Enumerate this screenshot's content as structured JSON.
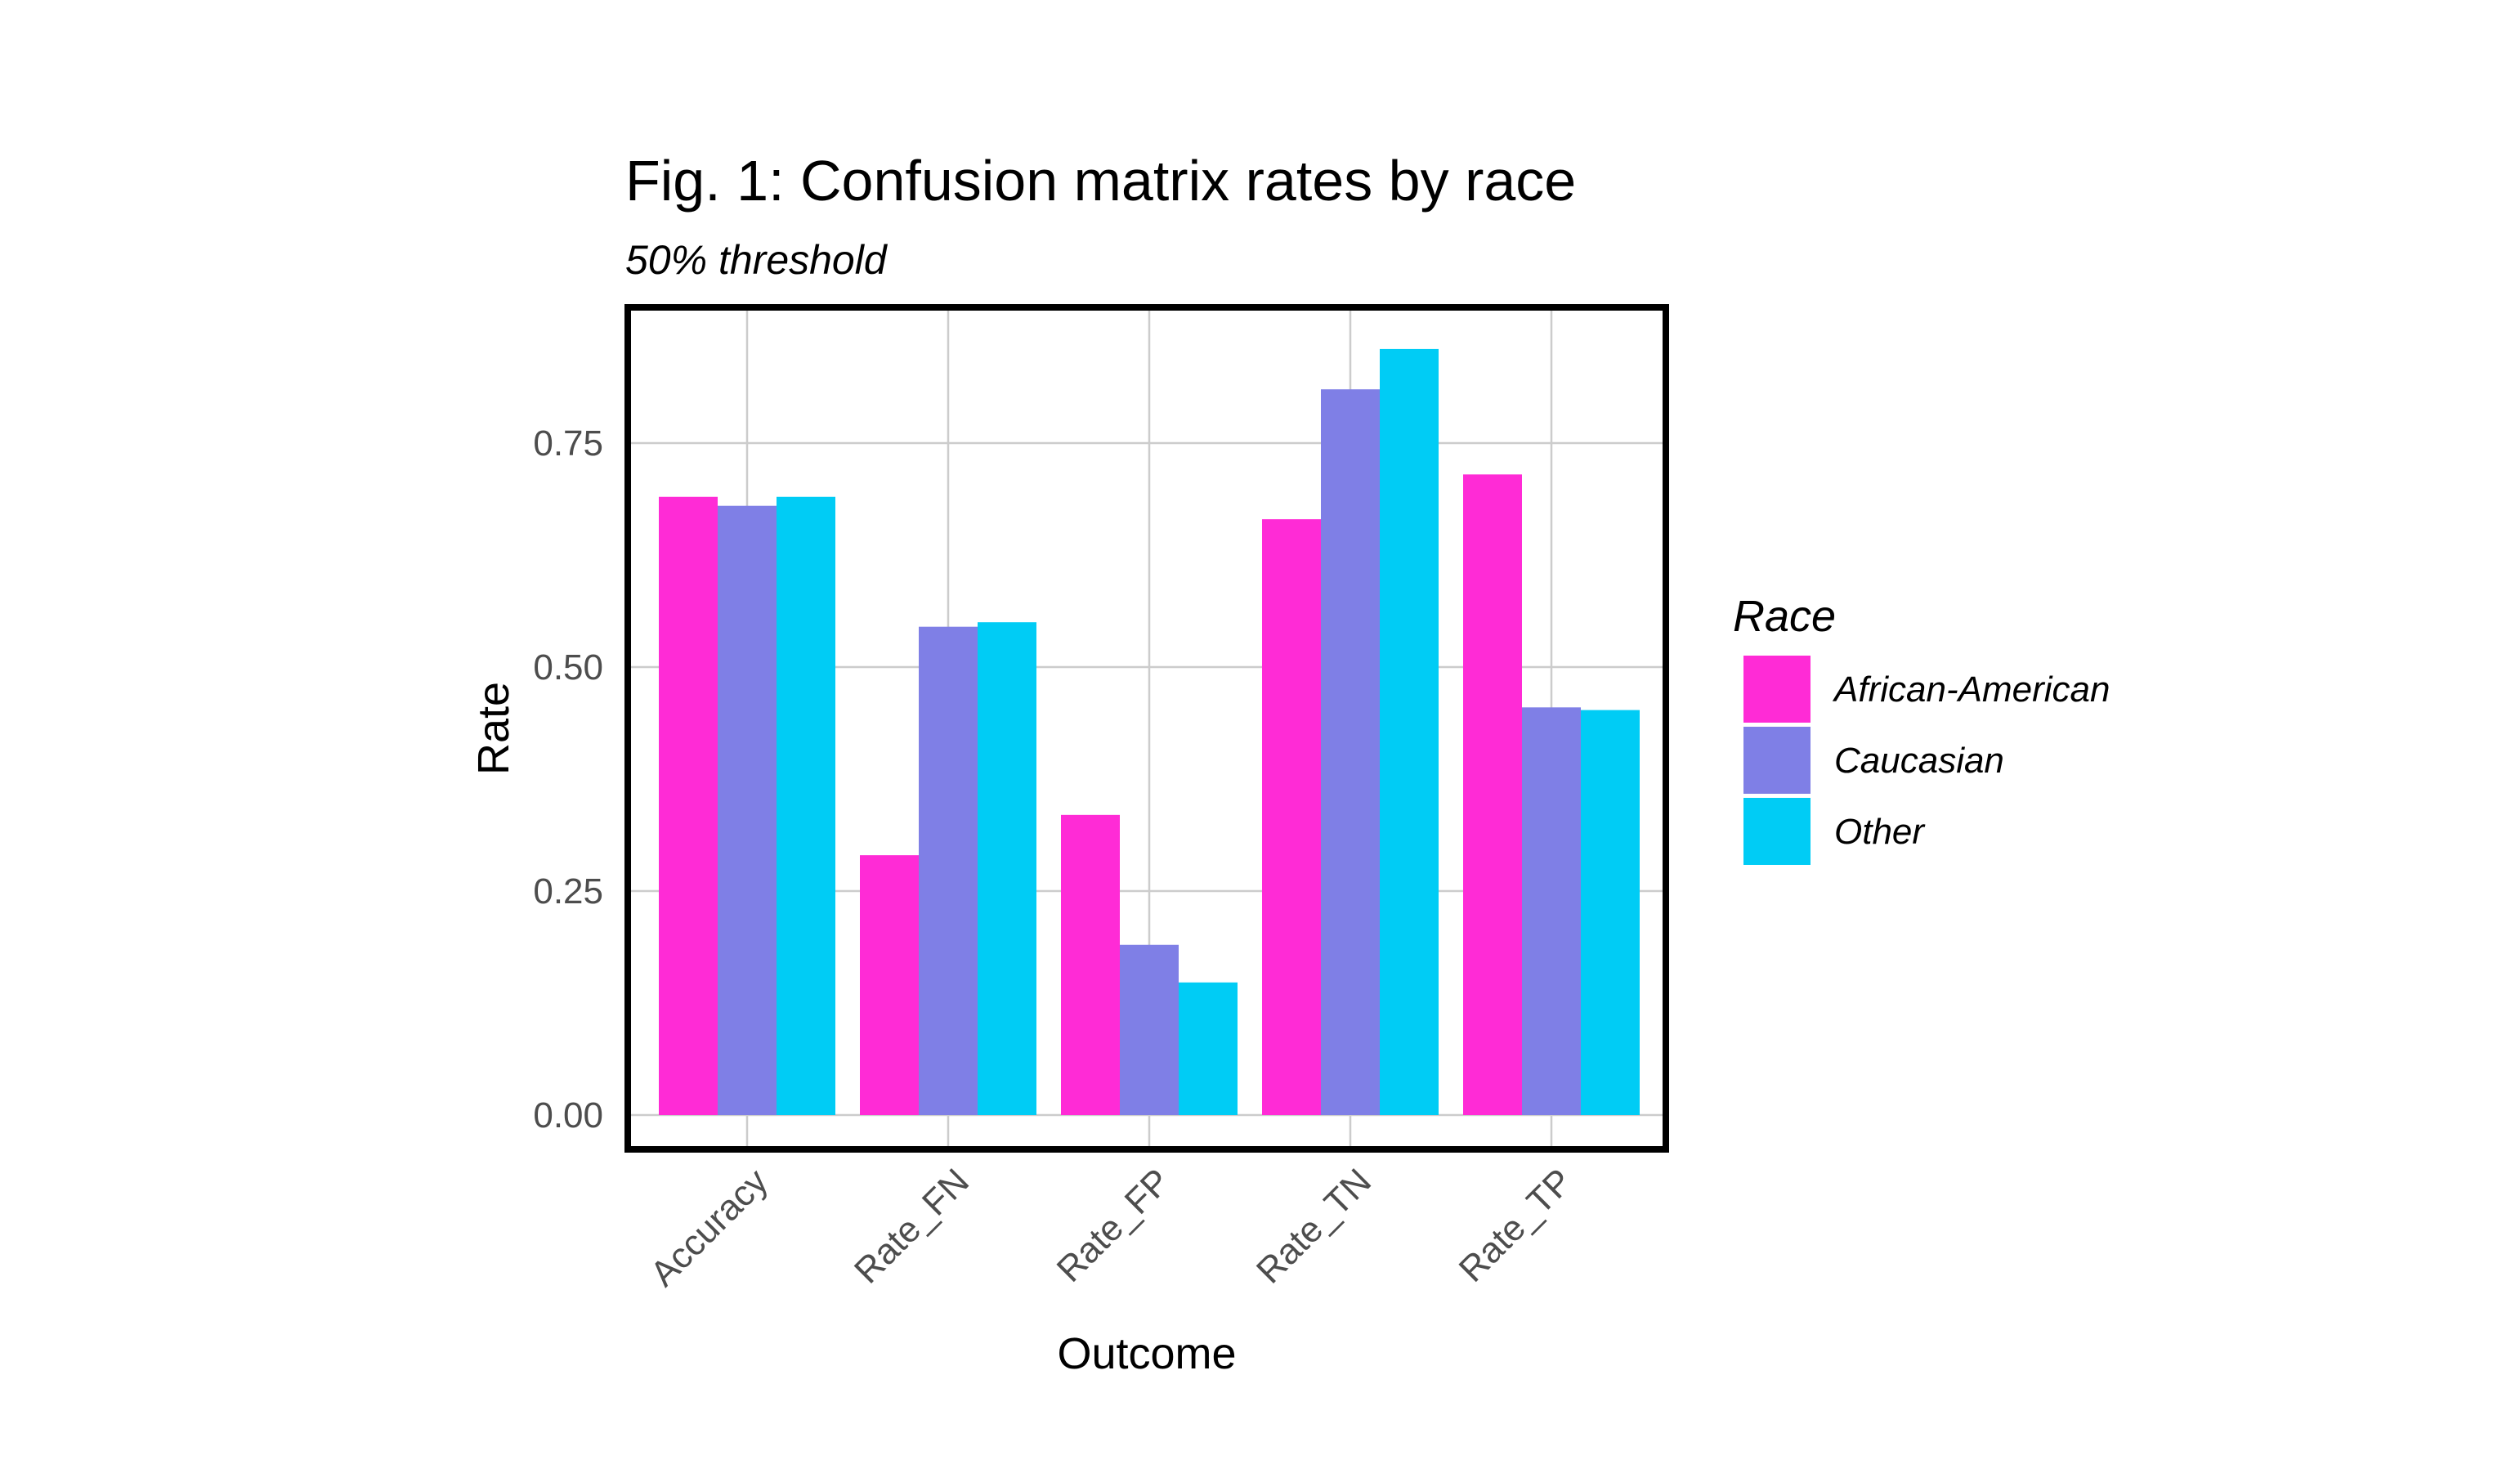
{
  "chart_data": {
    "type": "bar",
    "title": "Fig. 1: Confusion matrix rates by race",
    "subtitle": "50% threshold",
    "xlabel": "Outcome",
    "ylabel": "Rate",
    "categories": [
      "Accuracy",
      "Rate_FN",
      "Rate_FP",
      "Rate_TN",
      "Rate_TP"
    ],
    "series": [
      {
        "name": "African-American",
        "color": "#ff2bd6",
        "values": [
          0.69,
          0.29,
          0.335,
          0.665,
          0.715
        ]
      },
      {
        "name": "Caucasian",
        "color": "#7f7fe6",
        "values": [
          0.68,
          0.545,
          0.19,
          0.81,
          0.455
        ]
      },
      {
        "name": "Other",
        "color": "#00ccf5",
        "values": [
          0.69,
          0.55,
          0.148,
          0.855,
          0.452
        ]
      }
    ],
    "ylim": [
      0,
      0.88
    ],
    "yticks": [
      0,
      0.25,
      0.5,
      0.75
    ],
    "ytick_labels": [
      "0.00",
      "0.25",
      "0.50",
      "0.75"
    ],
    "legend": {
      "title": "Race",
      "position": "right"
    },
    "grid": true
  }
}
